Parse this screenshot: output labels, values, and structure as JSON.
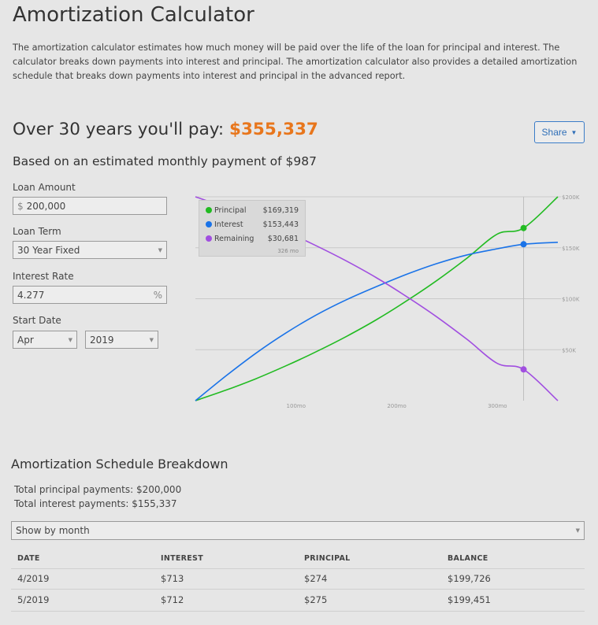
{
  "page": {
    "title": "Amortization Calculator",
    "intro": "The amortization calculator estimates how much money will be paid over the life of the loan for principal and interest. The calculator breaks down payments into interest and principal. The amortization calculator also provides a detailed amortization schedule that breaks down payments into interest and principal in the advanced report."
  },
  "summary": {
    "total_prefix": "Over 30 years you'll pay: ",
    "total_amount": "$355,337",
    "share_label": "Share",
    "monthly_text": "Based on an estimated monthly payment of $987"
  },
  "form": {
    "loan_amount": {
      "label": "Loan Amount",
      "prefix": "$",
      "value": "200,000"
    },
    "loan_term": {
      "label": "Loan Term",
      "value": "30 Year Fixed"
    },
    "interest_rate": {
      "label": "Interest Rate",
      "value": "4.277",
      "suffix": "%"
    },
    "start_date": {
      "label": "Start Date",
      "month": "Apr",
      "year": "2019"
    }
  },
  "tooltip": {
    "rows": [
      {
        "name": "Principal",
        "value": "$169,319",
        "color": "#22bb22"
      },
      {
        "name": "Interest",
        "value": "$153,443",
        "color": "#1a73e8"
      },
      {
        "name": "Remaining",
        "value": "$30,681",
        "color": "#a14fe0"
      }
    ],
    "month": "326 mo"
  },
  "chart_data": {
    "type": "line",
    "x_unit": "mo",
    "xlim": [
      0,
      360
    ],
    "ylim": [
      0,
      200000
    ],
    "x_ticks": [
      100,
      200,
      300
    ],
    "x_tick_labels": [
      "100mo",
      "200mo",
      "300mo"
    ],
    "y_ticks": [
      50000,
      100000,
      150000,
      200000
    ],
    "y_tick_labels": [
      "$50K",
      "$100K",
      "$150K",
      "$200K"
    ],
    "grid": true,
    "hover_x": 326,
    "series": [
      {
        "name": "Principal",
        "color": "#22bb22",
        "x": [
          0,
          30,
          60,
          90,
          120,
          150,
          180,
          210,
          240,
          270,
          300,
          326,
          360
        ],
        "y": [
          0,
          10200,
          21500,
          34200,
          48000,
          63000,
          79500,
          98000,
          118000,
          140000,
          163500,
          169319,
          200000
        ]
      },
      {
        "name": "Interest",
        "color": "#1a73e8",
        "x": [
          0,
          30,
          60,
          90,
          120,
          150,
          180,
          210,
          240,
          270,
          300,
          326,
          360
        ],
        "y": [
          0,
          24000,
          46500,
          66500,
          84000,
          99000,
          112000,
          124000,
          134500,
          143000,
          149000,
          153443,
          155337
        ]
      },
      {
        "name": "Remaining",
        "color": "#a14fe0",
        "x": [
          0,
          30,
          60,
          90,
          120,
          150,
          180,
          210,
          240,
          270,
          300,
          326,
          360
        ],
        "y": [
          200000,
          189800,
          178500,
          165800,
          152000,
          137000,
          120500,
          102000,
          82000,
          60000,
          36500,
          30681,
          0
        ]
      }
    ]
  },
  "schedule": {
    "title": "Amortization Schedule Breakdown",
    "total_principal": "Total principal payments: $200,000",
    "total_interest": "Total interest payments: $155,337",
    "view_option": "Show by month",
    "columns": [
      "DATE",
      "INTEREST",
      "PRINCIPAL",
      "BALANCE"
    ],
    "rows": [
      [
        "4/2019",
        "$713",
        "$274",
        "$199,726"
      ],
      [
        "5/2019",
        "$712",
        "$275",
        "$199,451"
      ]
    ]
  }
}
